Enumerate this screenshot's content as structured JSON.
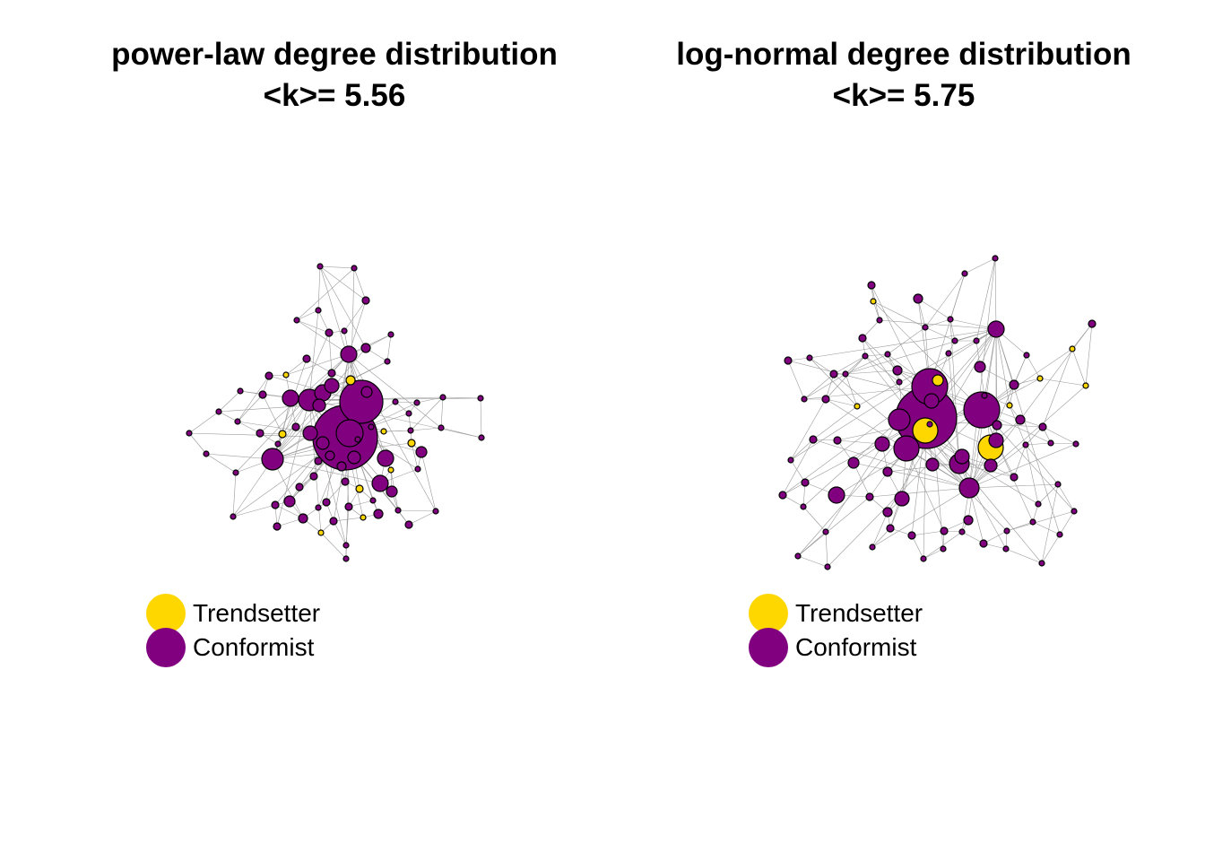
{
  "colors": {
    "trendsetter": "#FFD700",
    "conformist": "#800080",
    "edge": "#9a9a9a",
    "outline": "#000000"
  },
  "legend": {
    "trendsetter_label": "Trendsetter",
    "conformist_label": "Conformist"
  },
  "panels": [
    {
      "title_line1": "power-law degree distribution",
      "title_line2": "<k>= 5.56"
    },
    {
      "title_line1": "log-normal degree distribution",
      "title_line2": "<k>= 5.75"
    }
  ]
}
